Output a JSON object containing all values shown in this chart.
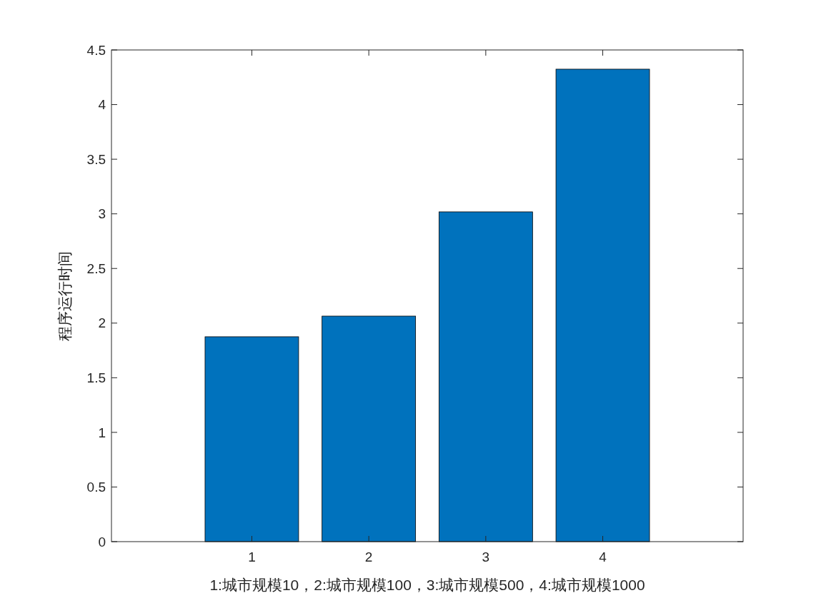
{
  "chart_data": {
    "type": "bar",
    "xlabel": "1:城市规模10，2:城市规模100，3:城市规模500，4:城市规模1000",
    "ylabel": "程序运行时间",
    "x": [
      1,
      2,
      3,
      4
    ],
    "values": [
      1.875,
      2.064,
      3.018,
      4.324
    ],
    "color": "#0072bd",
    "xlim": [
      -0.2,
      5.2
    ],
    "xticks": [
      1,
      2,
      3,
      4
    ],
    "ylim": [
      0,
      4.5
    ],
    "yticks": [
      0,
      0.5,
      1,
      1.5,
      2,
      2.5,
      3,
      3.5,
      4,
      4.5
    ],
    "grid": false
  }
}
